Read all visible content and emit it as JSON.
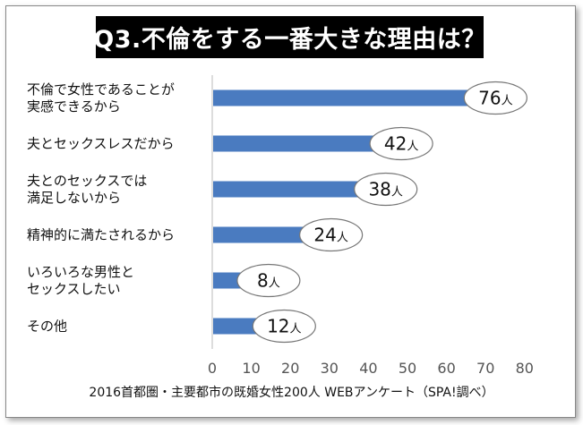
{
  "title": "Q3.不倫をする一番大きな理由は？",
  "caption": "2016首都圏・主要都市の既婚女性200人 WEBアンケート（SPA!調べ）",
  "chart_data": {
    "type": "bar",
    "orientation": "horizontal",
    "title": "Q3.不倫をする一番大きな理由は？",
    "categories": [
      [
        "不倫で女性であることが",
        "実感できるから"
      ],
      [
        "夫とセックスレスだから"
      ],
      [
        "夫とのセックスでは",
        "満足しないから"
      ],
      [
        "精神的に満たされるから"
      ],
      [
        "いろいろな男性と",
        "セックスしたい"
      ],
      [
        "その他"
      ]
    ],
    "values": [
      76,
      42,
      38,
      24,
      8,
      12
    ],
    "unit": "人",
    "xlim": [
      0,
      80
    ],
    "xticks": [
      "0",
      "10",
      "20",
      "30",
      "40",
      "50",
      "60",
      "70",
      "80"
    ],
    "bar_color": "#4a7bc0",
    "grid": false,
    "legend": "none"
  }
}
